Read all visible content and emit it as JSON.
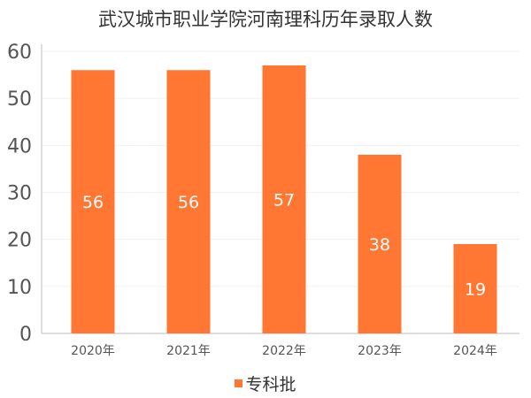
{
  "chart_data": {
    "type": "bar",
    "title": "武汉城市职业学院河南理科历年录取人数",
    "xlabel": "",
    "ylabel": "",
    "categories": [
      "2020年",
      "2021年",
      "2022年",
      "2023年",
      "2024年"
    ],
    "series": [
      {
        "name": "专科批",
        "values": [
          56,
          56,
          57,
          38,
          19
        ],
        "color": "#FF7733"
      }
    ],
    "ylim": [
      0,
      60
    ],
    "yticks": [
      "0",
      "10",
      "20",
      "30",
      "40",
      "50",
      "60"
    ],
    "grid": true,
    "legend": "bottom-center",
    "data_labels": [
      "56",
      "56",
      "57",
      "38",
      "19"
    ]
  }
}
